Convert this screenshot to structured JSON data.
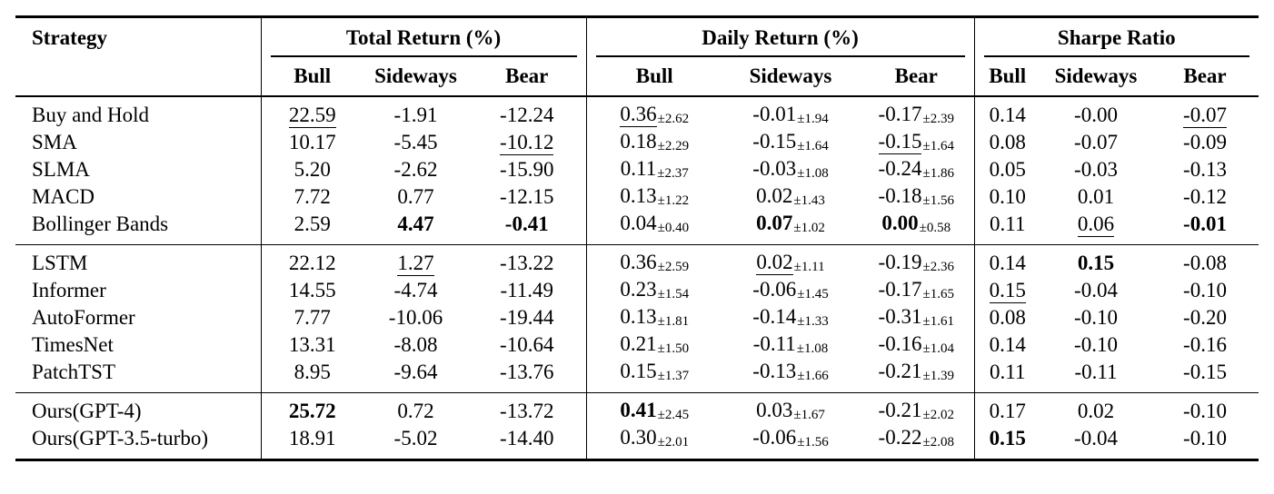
{
  "table": {
    "strategy_header": "Strategy",
    "col_groups": [
      {
        "key": "total_return",
        "label": "Total Return (%)"
      },
      {
        "key": "daily_return",
        "label": "Daily Return (%)"
      },
      {
        "key": "sharpe",
        "label": "Sharpe Ratio"
      }
    ],
    "sub_headers": [
      "Bull",
      "Sideways",
      "Bear"
    ],
    "text_color": "#000000",
    "background_color": "#ffffff",
    "groups": [
      {
        "rows": [
          {
            "strategy": "Buy and Hold",
            "total_return": [
              {
                "v": "22.59",
                "style": "underline"
              },
              {
                "v": "-1.91"
              },
              {
                "v": "-12.24"
              }
            ],
            "daily_return": [
              {
                "v": "0.36",
                "pm": "2.62",
                "style": "underline"
              },
              {
                "v": "-0.01",
                "pm": "1.94"
              },
              {
                "v": "-0.17",
                "pm": "2.39"
              }
            ],
            "sharpe": [
              {
                "v": "0.14"
              },
              {
                "v": "-0.00"
              },
              {
                "v": "-0.07",
                "style": "underline"
              }
            ]
          },
          {
            "strategy": "SMA",
            "total_return": [
              {
                "v": "10.17"
              },
              {
                "v": "-5.45"
              },
              {
                "v": "-10.12",
                "style": "underline"
              }
            ],
            "daily_return": [
              {
                "v": "0.18",
                "pm": "2.29"
              },
              {
                "v": "-0.15",
                "pm": "1.64"
              },
              {
                "v": "-0.15",
                "pm": "1.64",
                "style": "underline"
              }
            ],
            "sharpe": [
              {
                "v": "0.08"
              },
              {
                "v": "-0.07"
              },
              {
                "v": "-0.09"
              }
            ]
          },
          {
            "strategy": "SLMA",
            "total_return": [
              {
                "v": "5.20"
              },
              {
                "v": "-2.62"
              },
              {
                "v": "-15.90"
              }
            ],
            "daily_return": [
              {
                "v": "0.11",
                "pm": "2.37"
              },
              {
                "v": "-0.03",
                "pm": "1.08"
              },
              {
                "v": "-0.24",
                "pm": "1.86"
              }
            ],
            "sharpe": [
              {
                "v": "0.05"
              },
              {
                "v": "-0.03"
              },
              {
                "v": "-0.13"
              }
            ]
          },
          {
            "strategy": "MACD",
            "total_return": [
              {
                "v": "7.72"
              },
              {
                "v": "0.77"
              },
              {
                "v": "-12.15"
              }
            ],
            "daily_return": [
              {
                "v": "0.13",
                "pm": "1.22"
              },
              {
                "v": "0.02",
                "pm": "1.43"
              },
              {
                "v": "-0.18",
                "pm": "1.56"
              }
            ],
            "sharpe": [
              {
                "v": "0.10"
              },
              {
                "v": "0.01"
              },
              {
                "v": "-0.12"
              }
            ]
          },
          {
            "strategy": "Bollinger Bands",
            "total_return": [
              {
                "v": "2.59"
              },
              {
                "v": "4.47",
                "style": "bold"
              },
              {
                "v": "-0.41",
                "style": "bold"
              }
            ],
            "daily_return": [
              {
                "v": "0.04",
                "pm": "0.40"
              },
              {
                "v": "0.07",
                "pm": "1.02",
                "style": "bold"
              },
              {
                "v": "0.00",
                "pm": "0.58",
                "style": "bold"
              }
            ],
            "sharpe": [
              {
                "v": "0.11"
              },
              {
                "v": "0.06",
                "style": "underline"
              },
              {
                "v": "-0.01",
                "style": "bold"
              }
            ]
          }
        ]
      },
      {
        "rows": [
          {
            "strategy": "LSTM",
            "total_return": [
              {
                "v": "22.12"
              },
              {
                "v": "1.27",
                "style": "underline"
              },
              {
                "v": "-13.22"
              }
            ],
            "daily_return": [
              {
                "v": "0.36",
                "pm": "2.59"
              },
              {
                "v": "0.02",
                "pm": "1.11",
                "style": "underline"
              },
              {
                "v": "-0.19",
                "pm": "2.36"
              }
            ],
            "sharpe": [
              {
                "v": "0.14"
              },
              {
                "v": "0.15",
                "style": "bold"
              },
              {
                "v": "-0.08"
              }
            ]
          },
          {
            "strategy": "Informer",
            "total_return": [
              {
                "v": "14.55"
              },
              {
                "v": "-4.74"
              },
              {
                "v": "-11.49"
              }
            ],
            "daily_return": [
              {
                "v": "0.23",
                "pm": "1.54"
              },
              {
                "v": "-0.06",
                "pm": "1.45"
              },
              {
                "v": "-0.17",
                "pm": "1.65"
              }
            ],
            "sharpe": [
              {
                "v": "0.15",
                "style": "underline"
              },
              {
                "v": "-0.04"
              },
              {
                "v": "-0.10"
              }
            ]
          },
          {
            "strategy": "AutoFormer",
            "total_return": [
              {
                "v": "7.77"
              },
              {
                "v": "-10.06"
              },
              {
                "v": "-19.44"
              }
            ],
            "daily_return": [
              {
                "v": "0.13",
                "pm": "1.81"
              },
              {
                "v": "-0.14",
                "pm": "1.33"
              },
              {
                "v": "-0.31",
                "pm": "1.61"
              }
            ],
            "sharpe": [
              {
                "v": "0.08"
              },
              {
                "v": "-0.10"
              },
              {
                "v": "-0.20"
              }
            ]
          },
          {
            "strategy": "TimesNet",
            "total_return": [
              {
                "v": "13.31"
              },
              {
                "v": "-8.08"
              },
              {
                "v": "-10.64"
              }
            ],
            "daily_return": [
              {
                "v": "0.21",
                "pm": "1.50"
              },
              {
                "v": "-0.11",
                "pm": "1.08"
              },
              {
                "v": "-0.16",
                "pm": "1.04"
              }
            ],
            "sharpe": [
              {
                "v": "0.14"
              },
              {
                "v": "-0.10"
              },
              {
                "v": "-0.16"
              }
            ]
          },
          {
            "strategy": "PatchTST",
            "total_return": [
              {
                "v": "8.95"
              },
              {
                "v": "-9.64"
              },
              {
                "v": "-13.76"
              }
            ],
            "daily_return": [
              {
                "v": "0.15",
                "pm": "1.37"
              },
              {
                "v": "-0.13",
                "pm": "1.66"
              },
              {
                "v": "-0.21",
                "pm": "1.39"
              }
            ],
            "sharpe": [
              {
                "v": "0.11"
              },
              {
                "v": "-0.11"
              },
              {
                "v": "-0.15"
              }
            ]
          }
        ]
      },
      {
        "rows": [
          {
            "strategy": "Ours(GPT-4)",
            "total_return": [
              {
                "v": "25.72",
                "style": "bold"
              },
              {
                "v": "0.72"
              },
              {
                "v": "-13.72"
              }
            ],
            "daily_return": [
              {
                "v": "0.41",
                "pm": "2.45",
                "style": "bold"
              },
              {
                "v": "0.03",
                "pm": "1.67"
              },
              {
                "v": "-0.21",
                "pm": "2.02"
              }
            ],
            "sharpe": [
              {
                "v": "0.17"
              },
              {
                "v": "0.02"
              },
              {
                "v": "-0.10"
              }
            ]
          },
          {
            "strategy": "Ours(GPT-3.5-turbo)",
            "total_return": [
              {
                "v": "18.91"
              },
              {
                "v": "-5.02"
              },
              {
                "v": "-14.40"
              }
            ],
            "daily_return": [
              {
                "v": "0.30",
                "pm": "2.01"
              },
              {
                "v": "-0.06",
                "pm": "1.56"
              },
              {
                "v": "-0.22",
                "pm": "2.08"
              }
            ],
            "sharpe": [
              {
                "v": "0.15",
                "style": "bold"
              },
              {
                "v": "-0.04"
              },
              {
                "v": "-0.10"
              }
            ]
          }
        ]
      }
    ]
  }
}
